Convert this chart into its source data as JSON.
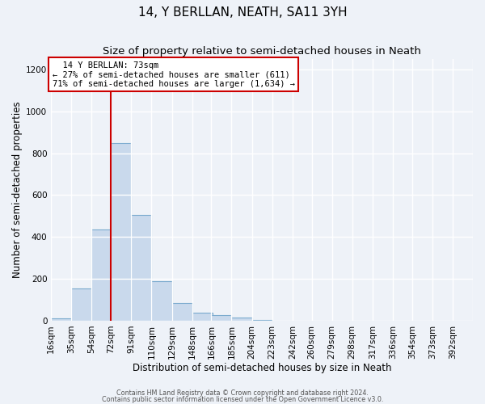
{
  "title": "14, Y BERLLAN, NEATH, SA11 3YH",
  "subtitle": "Size of property relative to semi-detached houses in Neath",
  "xlabel": "Distribution of semi-detached houses by size in Neath",
  "ylabel": "Number of semi-detached properties",
  "bin_labels": [
    "16sqm",
    "35sqm",
    "54sqm",
    "72sqm",
    "91sqm",
    "110sqm",
    "129sqm",
    "148sqm",
    "166sqm",
    "185sqm",
    "204sqm",
    "223sqm",
    "242sqm",
    "260sqm",
    "279sqm",
    "298sqm",
    "317sqm",
    "336sqm",
    "354sqm",
    "373sqm",
    "392sqm"
  ],
  "bin_edges": [
    16,
    35,
    54,
    72,
    91,
    110,
    129,
    148,
    166,
    185,
    204,
    223,
    242,
    260,
    279,
    298,
    317,
    336,
    354,
    373,
    392
  ],
  "bar_heights": [
    10,
    155,
    435,
    850,
    505,
    190,
    85,
    38,
    25,
    15,
    5,
    0,
    0,
    0,
    0,
    0,
    0,
    0,
    0,
    0
  ],
  "bar_color": "#c9d9ec",
  "bar_edgecolor": "#7aaace",
  "property_line_x": 72,
  "property_size": "73sqm",
  "property_name": "14 Y BERLLAN",
  "pct_smaller": 27,
  "count_smaller": 611,
  "pct_larger": 71,
  "count_larger": 1634,
  "line_color": "#cc0000",
  "annotation_box_edgecolor": "#cc0000",
  "ylim": [
    0,
    1250
  ],
  "yticks": [
    0,
    200,
    400,
    600,
    800,
    1000,
    1200
  ],
  "footer1": "Contains HM Land Registry data © Crown copyright and database right 2024.",
  "footer2": "Contains public sector information licensed under the Open Government Licence v3.0.",
  "bg_color": "#eef2f8",
  "plot_bg_color": "#eef2f8",
  "grid_color": "#ffffff",
  "title_fontsize": 11,
  "subtitle_fontsize": 9.5,
  "axis_fontsize": 8.5,
  "tick_fontsize": 7.5,
  "annotation_fontsize": 7.5
}
